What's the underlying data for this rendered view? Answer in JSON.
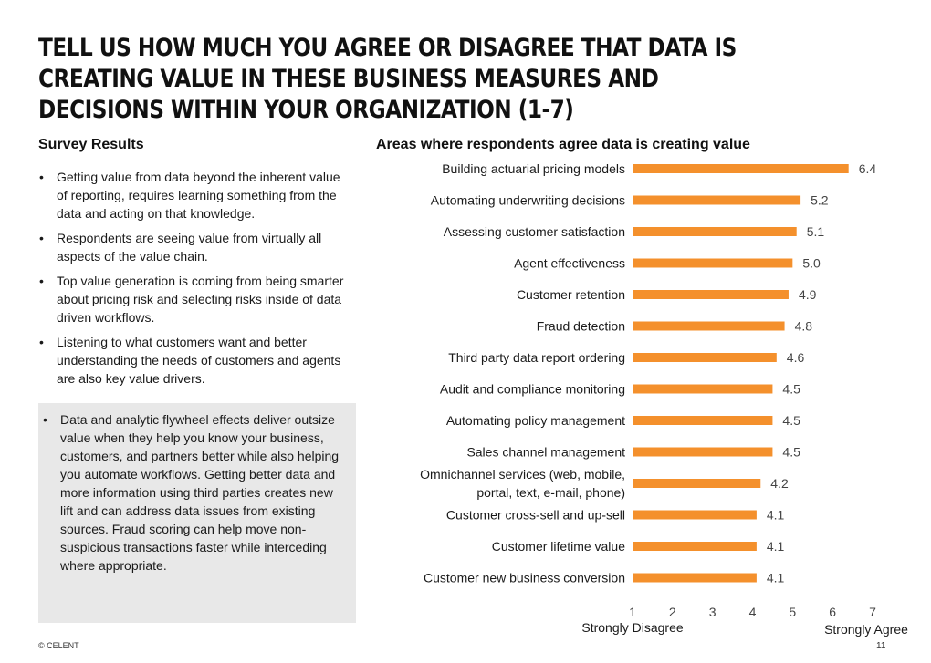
{
  "page": {
    "title": "Tell us how much you agree or disagree that data is creating value in these business measures and decisions within your organization (1-7)",
    "copyright": "© CELENT",
    "page_number": "11"
  },
  "survey": {
    "heading": "Survey Results",
    "bullets": [
      "Getting value from data beyond the inherent value of reporting, requires learning something from the data and acting on that knowledge.",
      "Respondents are seeing value from virtually all aspects of the value chain.",
      "Top value generation is coming from being smarter about pricing risk and selecting risks inside of data driven workflows.",
      "Listening to what customers want and better understanding the needs of customers and agents are also key value drivers."
    ],
    "callout": "Data and analytic flywheel effects deliver outsize value when they help you know your business, customers, and partners better while also helping you automate workflows. Getting better data and more information using third parties creates new lift and can address data issues from existing sources. Fraud scoring can help move non-suspicious transactions faster while interceding where appropriate."
  },
  "colors": {
    "bar": "#f4902c",
    "text": "#1a1a1a",
    "muted": "#444444"
  },
  "chart_data": {
    "type": "bar",
    "orientation": "horizontal",
    "title": "Areas where respondents agree data is creating value",
    "categories": [
      "Building actuarial pricing models",
      "Automating underwriting decisions",
      "Assessing customer satisfaction",
      "Agent effectiveness",
      "Customer retention",
      "Fraud detection",
      "Third party data report ordering",
      "Audit and compliance monitoring",
      "Automating policy management",
      "Sales channel management",
      "Omnichannel services (web, mobile, portal, text, e-mail, phone)",
      "Customer cross-sell and up-sell",
      "Customer lifetime value",
      "Customer new business conversion"
    ],
    "category_lines": [
      [
        "Building actuarial pricing models"
      ],
      [
        "Automating underwriting decisions"
      ],
      [
        "Assessing customer satisfaction"
      ],
      [
        "Agent effectiveness"
      ],
      [
        "Customer retention"
      ],
      [
        "Fraud detection"
      ],
      [
        "Third party data report ordering"
      ],
      [
        "Audit and compliance monitoring"
      ],
      [
        "Automating policy management"
      ],
      [
        "Sales channel management"
      ],
      [
        "Omnichannel services (web, mobile,",
        "portal, text, e-mail, phone)"
      ],
      [
        "Customer cross-sell and up-sell"
      ],
      [
        "Customer lifetime value"
      ],
      [
        "Customer new business conversion"
      ]
    ],
    "values": [
      6.4,
      5.2,
      5.1,
      5.0,
      4.9,
      4.8,
      4.6,
      4.5,
      4.5,
      4.5,
      4.2,
      4.1,
      4.1,
      4.1
    ],
    "value_labels": [
      "6.4",
      "5.2",
      "5.1",
      "5.0",
      "4.9",
      "4.8",
      "4.6",
      "4.5",
      "4.5",
      "4.5",
      "4.2",
      "4.1",
      "4.1",
      "4.1"
    ],
    "xlim": [
      1,
      7
    ],
    "xticks": [
      1,
      2,
      3,
      4,
      5,
      6,
      7
    ],
    "xlabel_low": "Strongly Disagree",
    "xlabel_high": "Strongly Agree",
    "grid": false
  }
}
